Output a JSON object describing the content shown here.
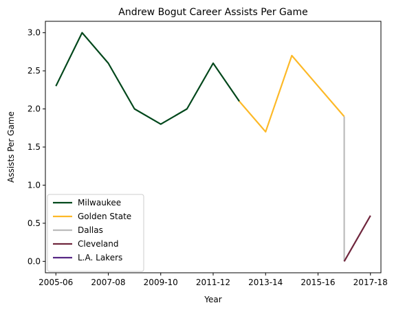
{
  "chart_data": {
    "type": "line",
    "title": "Andrew Bogut Career Assists Per Game",
    "xlabel": "Year",
    "ylabel": "Assists Per Game",
    "seasons": [
      "2005-06",
      "2006-07",
      "2007-08",
      "2008-09",
      "2009-10",
      "2010-11",
      "2011-12",
      "2012-13",
      "2013-14",
      "2014-15",
      "2015-16",
      "2016-17",
      "2017-18"
    ],
    "x_tick_labels": [
      "2005-06",
      "2007-08",
      "2009-10",
      "2011-12",
      "2013-14",
      "2015-16",
      "2017-18"
    ],
    "y_ticks": [
      "0.0",
      "0.5",
      "1.0",
      "1.5",
      "2.0",
      "2.5",
      "3.0"
    ],
    "ylim": [
      -0.15,
      3.15
    ],
    "grid": false,
    "legend_position": "lower-left",
    "series": [
      {
        "name": "Milwaukee",
        "color": "#00471B",
        "points": [
          [
            "2005-06",
            2.3
          ],
          [
            "2006-07",
            3.0
          ],
          [
            "2007-08",
            2.6
          ],
          [
            "2008-09",
            2.0
          ],
          [
            "2009-10",
            1.8
          ],
          [
            "2010-11",
            2.0
          ],
          [
            "2011-12",
            2.6
          ],
          [
            "2012-13",
            2.1
          ]
        ]
      },
      {
        "name": "Golden State",
        "color": "#FDB927",
        "points": [
          [
            "2012-13",
            2.1
          ],
          [
            "2013-14",
            1.7
          ],
          [
            "2014-15",
            2.7
          ],
          [
            "2015-16",
            2.3
          ],
          [
            "2016-17",
            1.9
          ]
        ]
      },
      {
        "name": "Dallas",
        "color": "#BBBBBB",
        "points": [
          [
            "2016-17",
            1.9
          ],
          [
            "2016-17",
            0.0
          ]
        ]
      },
      {
        "name": "Cleveland",
        "color": "#6F263D",
        "points": [
          [
            "2016-17",
            0.0
          ],
          [
            "2017-18",
            0.6
          ]
        ]
      },
      {
        "name": "L.A. Lakers",
        "color": "#552583",
        "points": []
      }
    ]
  }
}
